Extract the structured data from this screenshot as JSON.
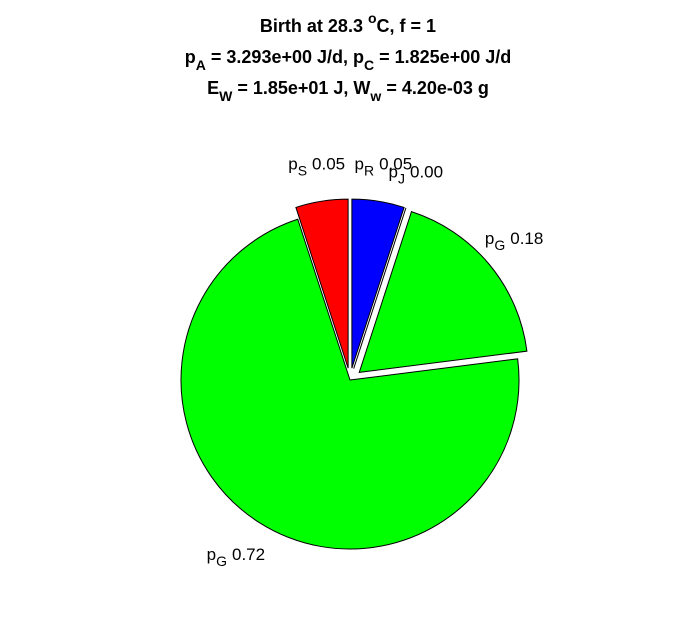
{
  "chart_data": {
    "type": "pie",
    "title": [
      [
        {
          "t": "Birth at 28.3 "
        },
        {
          "t": "o",
          "sup": true
        },
        {
          "t": "C, f = 1"
        }
      ],
      [
        {
          "t": "p"
        },
        {
          "t": "A",
          "sub": true
        },
        {
          "t": " = 3.293e+00 J/d, p"
        },
        {
          "t": "C",
          "sub": true
        },
        {
          "t": " = 1.825e+00 J/d"
        }
      ],
      [
        {
          "t": "E"
        },
        {
          "t": "W",
          "sub": true
        },
        {
          "t": " = 1.85e+01 J, W"
        },
        {
          "t": "w",
          "sub": true
        },
        {
          "t": " = 4.20e-03 g"
        }
      ]
    ],
    "labels": [
      {
        "main": "p",
        "sub": "R"
      },
      {
        "main": "p",
        "sub": "J"
      },
      {
        "main": "p",
        "sub": "G"
      },
      {
        "main": "p",
        "sub": "G"
      },
      {
        "main": "p",
        "sub": "S"
      }
    ],
    "values": [
      0.05,
      0.0,
      0.18,
      0.72,
      0.05
    ],
    "value_labels": [
      "0.05",
      "0.00",
      "0.18",
      "0.72",
      "0.05"
    ],
    "colors": [
      "#0000ff",
      "#ffff00",
      "#00ff00",
      "#00ff00",
      "#ff0000"
    ],
    "explode": [
      true,
      true,
      true,
      false,
      true
    ]
  }
}
